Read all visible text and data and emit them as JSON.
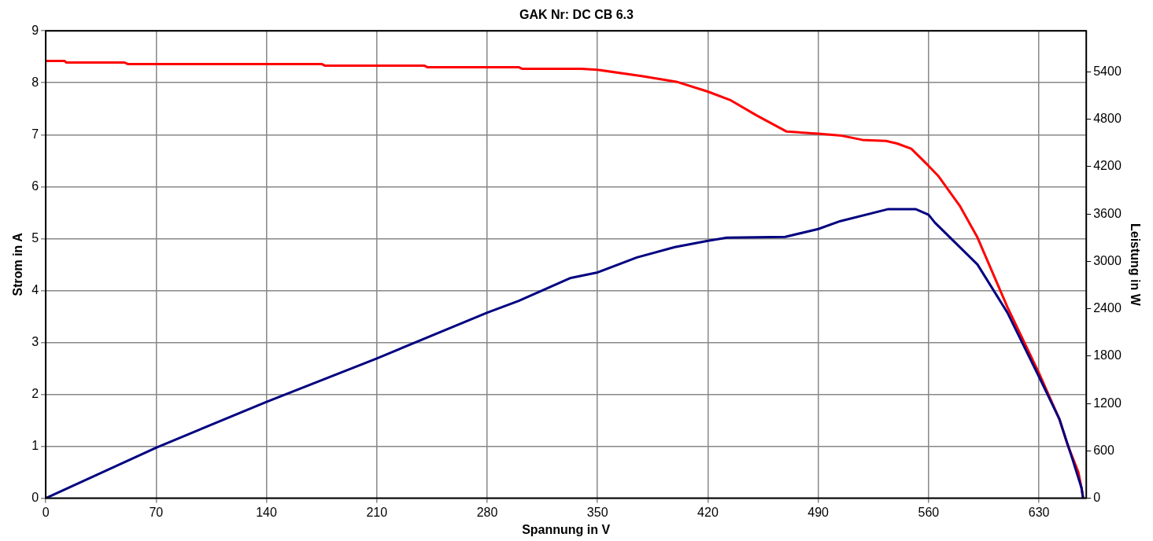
{
  "chart_data": {
    "type": "line",
    "title": "GAK Nr: DC CB 6.3",
    "xlabel": "Spannung in V",
    "ylabel": "Strom in A",
    "y2label": "Leistung in W",
    "xlim": [
      0,
      660
    ],
    "xticks": [
      0,
      70,
      140,
      210,
      280,
      350,
      420,
      490,
      560,
      630
    ],
    "ylim": [
      0,
      9
    ],
    "yticks": [
      0,
      1,
      2,
      3,
      4,
      5,
      6,
      7,
      8,
      9
    ],
    "y2lim": [
      0,
      5920
    ],
    "y2ticks": [
      0,
      600,
      1200,
      1800,
      2400,
      3000,
      3600,
      4200,
      4800,
      5400
    ],
    "grid": true,
    "marker": "none",
    "line_style": "solid",
    "series": [
      {
        "color": "#ff0000",
        "x": [
          0,
          12,
          13,
          50,
          52,
          175,
          177,
          240,
          242,
          300,
          302,
          340,
          350,
          378,
          400,
          420,
          434,
          451,
          470,
          490,
          505,
          518,
          533,
          540,
          549,
          560,
          566,
          580,
          591,
          610,
          630,
          643,
          648,
          655,
          657,
          658
        ],
        "values": [
          8.42,
          8.42,
          8.39,
          8.39,
          8.36,
          8.36,
          8.33,
          8.33,
          8.3,
          8.3,
          8.27,
          8.27,
          8.25,
          8.13,
          8.02,
          7.83,
          7.67,
          7.37,
          7.06,
          7.02,
          6.98,
          6.9,
          6.88,
          6.83,
          6.73,
          6.4,
          6.21,
          5.62,
          5.02,
          3.68,
          2.41,
          1.52,
          1.04,
          0.5,
          0.19,
          0
        ]
      },
      {
        "color": "#000080",
        "axis": "y2",
        "x": [
          0,
          70,
          140,
          210,
          280,
          300,
          333,
          350,
          375,
          399,
          420,
          432,
          469,
          490,
          504,
          534,
          552,
          560,
          564,
          591,
          610,
          630,
          643,
          651,
          657,
          658
        ],
        "values": [
          0,
          640,
          1220,
          1770,
          2350,
          2500,
          2790,
          2860,
          3050,
          3180,
          3260,
          3300,
          3310,
          3410,
          3510,
          3660,
          3660,
          3590,
          3490,
          2960,
          2350,
          1540,
          1000,
          510,
          130,
          0
        ]
      }
    ]
  }
}
